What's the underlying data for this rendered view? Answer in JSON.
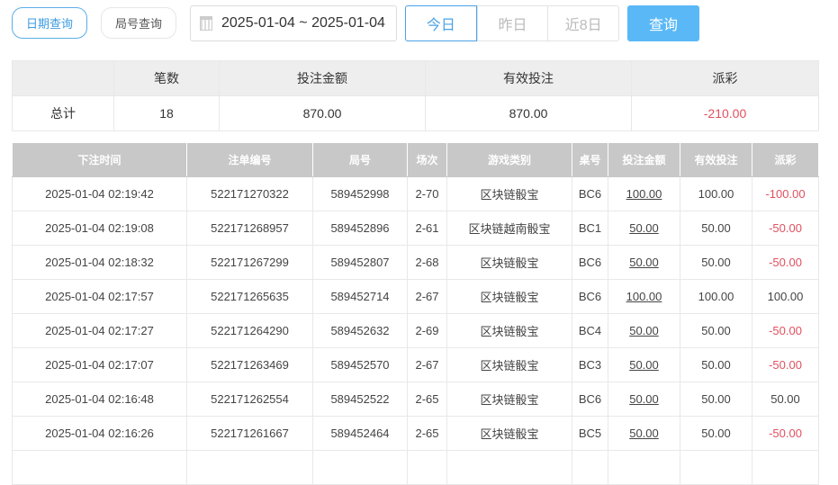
{
  "tabs": {
    "date": "日期查询",
    "round": "局号查询"
  },
  "date_range": "2025-01-04 ~ 2025-01-04",
  "quick": [
    "今日",
    "昨日",
    "近8日"
  ],
  "query_label": "查询",
  "summary": {
    "headers": [
      "",
      "笔数",
      "投注金额",
      "有效投注",
      "派彩"
    ],
    "label": "总计",
    "count": "18",
    "bet": "870.00",
    "valid": "870.00",
    "payout": "-210.00"
  },
  "table": {
    "headers": [
      "下注时间",
      "注单编号",
      "局号",
      "场次",
      "游戏类别",
      "桌号",
      "投注金额",
      "有效投注",
      "派彩"
    ],
    "rows": [
      [
        "2025-01-04 02:19:42",
        "522171270322",
        "589452998",
        "2-70",
        "区块链骰宝",
        "BC6",
        "100.00",
        "100.00",
        "-100.00"
      ],
      [
        "2025-01-04 02:19:08",
        "522171268957",
        "589452896",
        "2-61",
        "区块链越南骰宝",
        "BC1",
        "50.00",
        "50.00",
        "-50.00"
      ],
      [
        "2025-01-04 02:18:32",
        "522171267299",
        "589452807",
        "2-68",
        "区块链骰宝",
        "BC6",
        "50.00",
        "50.00",
        "-50.00"
      ],
      [
        "2025-01-04 02:17:57",
        "522171265635",
        "589452714",
        "2-67",
        "区块链骰宝",
        "BC6",
        "100.00",
        "100.00",
        "100.00"
      ],
      [
        "2025-01-04 02:17:27",
        "522171264290",
        "589452632",
        "2-69",
        "区块链骰宝",
        "BC4",
        "50.00",
        "50.00",
        "-50.00"
      ],
      [
        "2025-01-04 02:17:07",
        "522171263469",
        "589452570",
        "2-67",
        "区块链骰宝",
        "BC3",
        "50.00",
        "50.00",
        "-50.00"
      ],
      [
        "2025-01-04 02:16:48",
        "522171262554",
        "589452522",
        "2-65",
        "区块链骰宝",
        "BC6",
        "50.00",
        "50.00",
        "50.00"
      ],
      [
        "2025-01-04 02:16:26",
        "522171261667",
        "589452464",
        "2-65",
        "区块链骰宝",
        "BC5",
        "50.00",
        "50.00",
        "-50.00"
      ]
    ]
  },
  "colors": {
    "accent": "#4aa3e8",
    "query_bg": "#5ab8f7",
    "negative": "#e0505f"
  }
}
